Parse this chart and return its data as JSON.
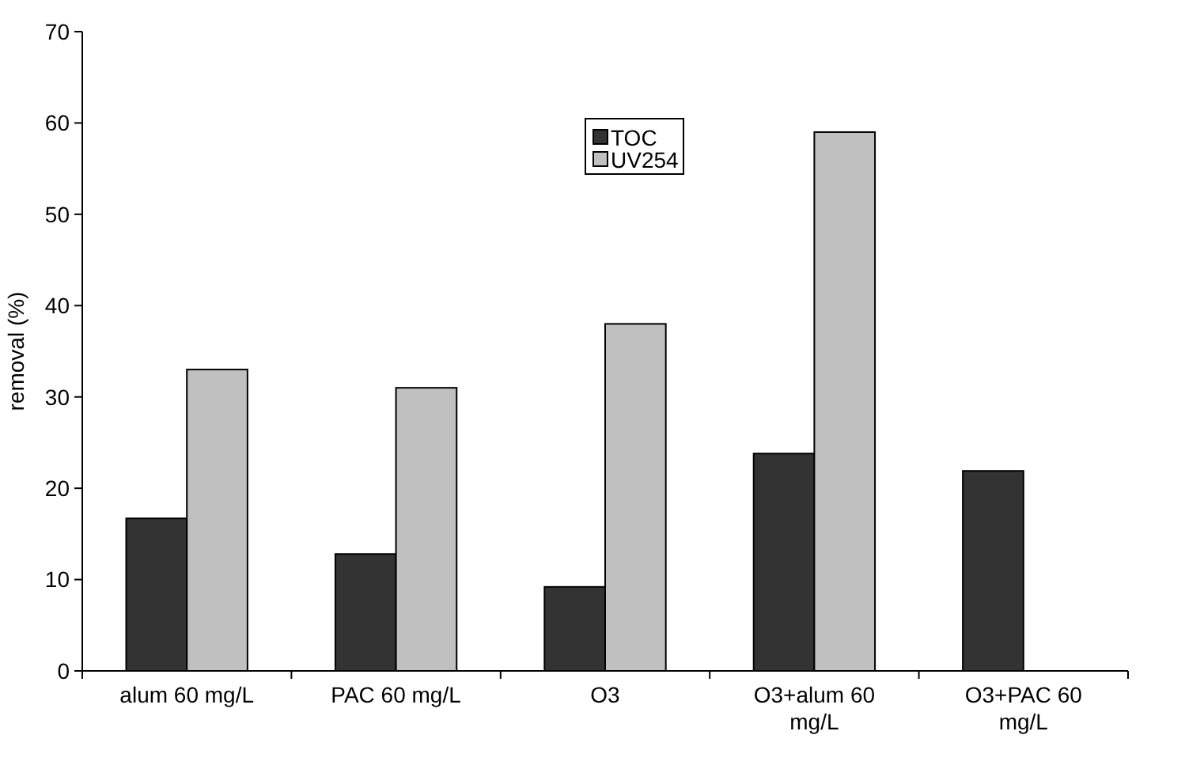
{
  "chart_data": {
    "type": "bar",
    "ylabel": "removal (%)",
    "categories": [
      "alum 60 mg/L",
      "PAC 60 mg/L",
      "O3",
      "O3+alum 60 mg/L",
      "O3+PAC 60 mg/L"
    ],
    "series": [
      {
        "name": "TOC",
        "color": "#333333",
        "values": [
          16.7,
          12.8,
          9.2,
          23.8,
          21.9
        ]
      },
      {
        "name": "UV254",
        "color": "#c0c0c0",
        "values": [
          33,
          31,
          38,
          59,
          null
        ]
      }
    ],
    "ylim": [
      0,
      70
    ],
    "yticks": [
      0,
      10,
      20,
      30,
      40,
      50,
      60,
      70
    ],
    "grid": false,
    "legend": "top"
  }
}
